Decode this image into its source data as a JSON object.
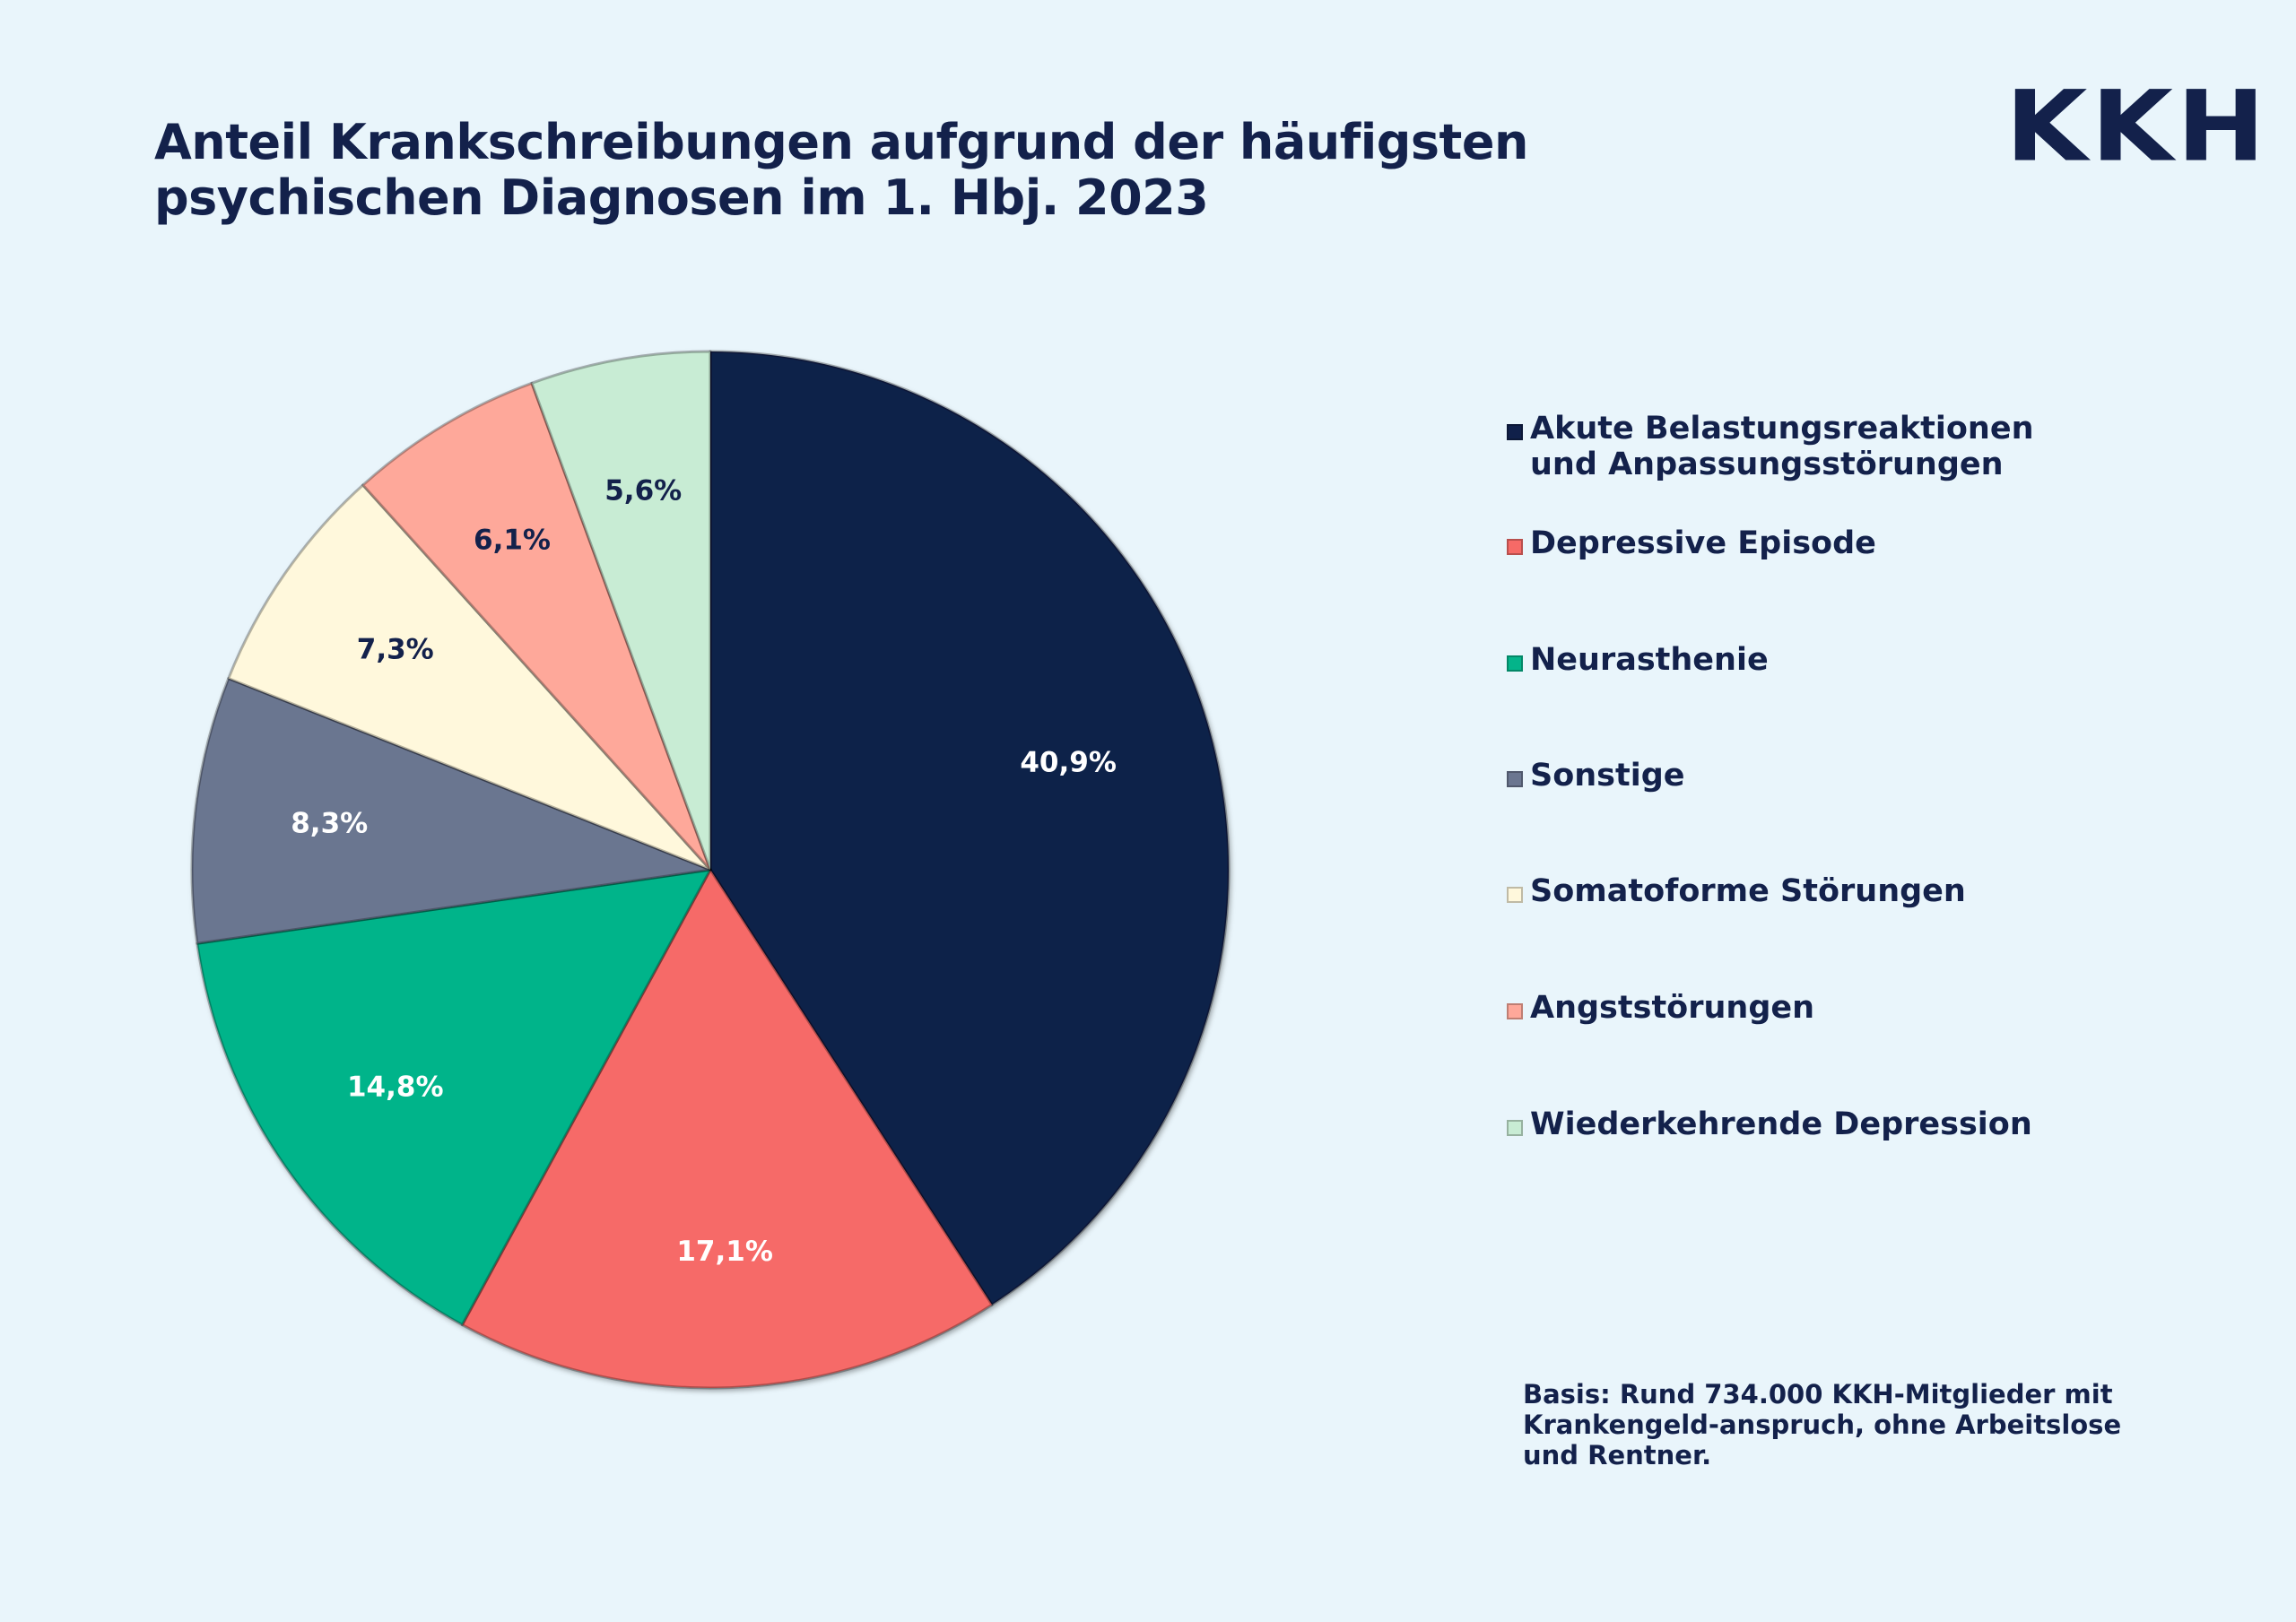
{
  "title_lines": [
    "Anteil Krankschreibungen aufgrund der häufigsten",
    "psychischen Diagnosen im 1. Hbj. 2023"
  ],
  "logo_text": "KKH",
  "footnote": "Basis: Rund 734.000 KKH-Mitglieder mit Krankengeld-anspruch, ohne Arbeitslose und Rentner.",
  "chart_data": {
    "type": "pie",
    "title": "Anteil Krankschreibungen aufgrund der häufigsten psychischen Diagnosen im 1. Hbj. 2023",
    "legend_position": "right",
    "start": "top, clockwise",
    "slices": [
      {
        "name": "Akute Belastungsreaktionen und Anpassungsstörungen",
        "value": 40.9,
        "label": "40,9%",
        "color": "#10204a",
        "label_color": "#ffffff"
      },
      {
        "name": "Depressive Episode",
        "value": 17.1,
        "label": "17,1%",
        "color": "#f66a67",
        "label_color": "#ffffff"
      },
      {
        "name": "Neurasthenie",
        "value": 14.8,
        "label": "14,8%",
        "color": "#04b48a",
        "label_color": "#ffffff"
      },
      {
        "name": "Sonstige",
        "value": 8.3,
        "label": "8,3%",
        "color": "#6b7690",
        "label_color": "#ffffff"
      },
      {
        "name": "Somatoforme Störungen",
        "value": 7.3,
        "label": "7,3%",
        "color": "#fff8dc",
        "label_color": "#13214b"
      },
      {
        "name": "Angststörungen",
        "value": 6.1,
        "label": "6,1%",
        "color": "#fea89a",
        "label_color": "#13214b"
      },
      {
        "name": "Wiederkehrende Depression",
        "value": 5.6,
        "label": "5,6%",
        "color": "#c8ecd4",
        "label_color": "#13214b"
      }
    ]
  },
  "legend": [
    {
      "label": "Akute Belastungsreaktionen\nund Anpassungsstörungen",
      "color": "#10204a"
    },
    {
      "label": "Depressive Episode",
      "color": "#f66a67"
    },
    {
      "label": "Neurasthenie",
      "color": "#04b48a"
    },
    {
      "label": "Sonstige",
      "color": "#6b7690"
    },
    {
      "label": "Somatoforme Störungen",
      "color": "#fff8dc"
    },
    {
      "label": "Angststörungen",
      "color": "#fea89a"
    },
    {
      "label": "Wiederkehrende Depression",
      "color": "#c8ecd4"
    }
  ]
}
